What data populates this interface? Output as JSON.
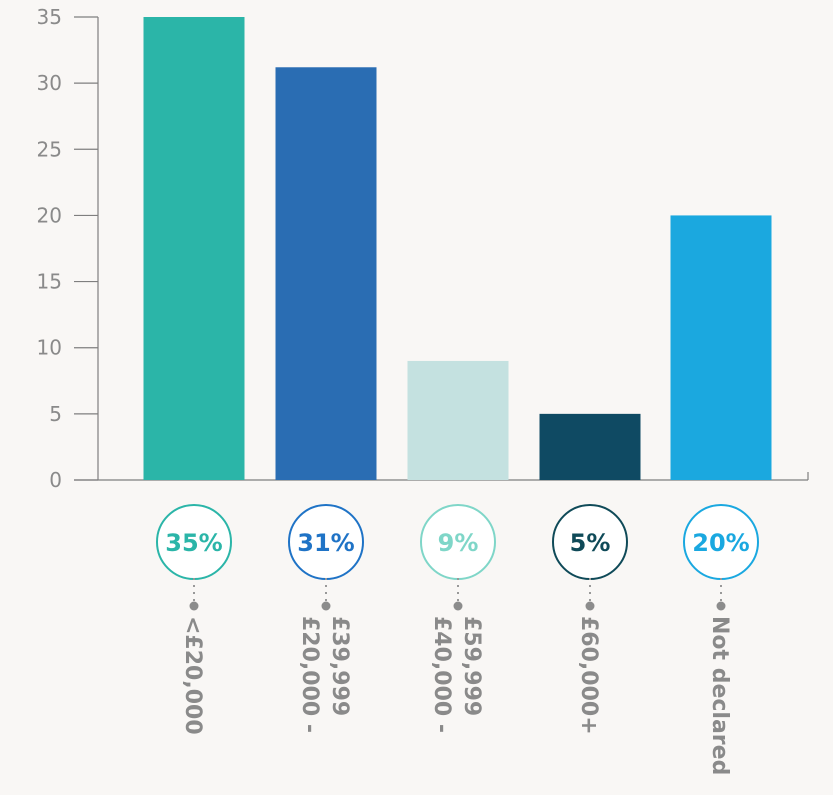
{
  "chart_data": {
    "type": "bar",
    "categories": [
      [
        "<£20,000"
      ],
      [
        "£20,000 -",
        "£39,999"
      ],
      [
        "£40,000 -",
        "£59,999"
      ],
      [
        "£60,000+"
      ],
      [
        "Not declared"
      ]
    ],
    "values": [
      35,
      31.2,
      9,
      5,
      20
    ],
    "percent_labels": [
      "35%",
      "31%",
      "9%",
      "5%",
      "20%"
    ],
    "bar_colors": [
      "#2bb5a8",
      "#2a6db3",
      "#c4e1e0",
      "#0f4a63",
      "#1ba8df"
    ],
    "badge_colors": [
      "#2bb5a8",
      "#1f73c6",
      "#7fd6c8",
      "#0f4a58",
      "#1aa8e0"
    ],
    "y_ticks": [
      0,
      5,
      10,
      15,
      20,
      25,
      30,
      35
    ],
    "ylim": [
      0,
      35
    ],
    "grid": false,
    "axis_color": "#7f7f7f"
  }
}
